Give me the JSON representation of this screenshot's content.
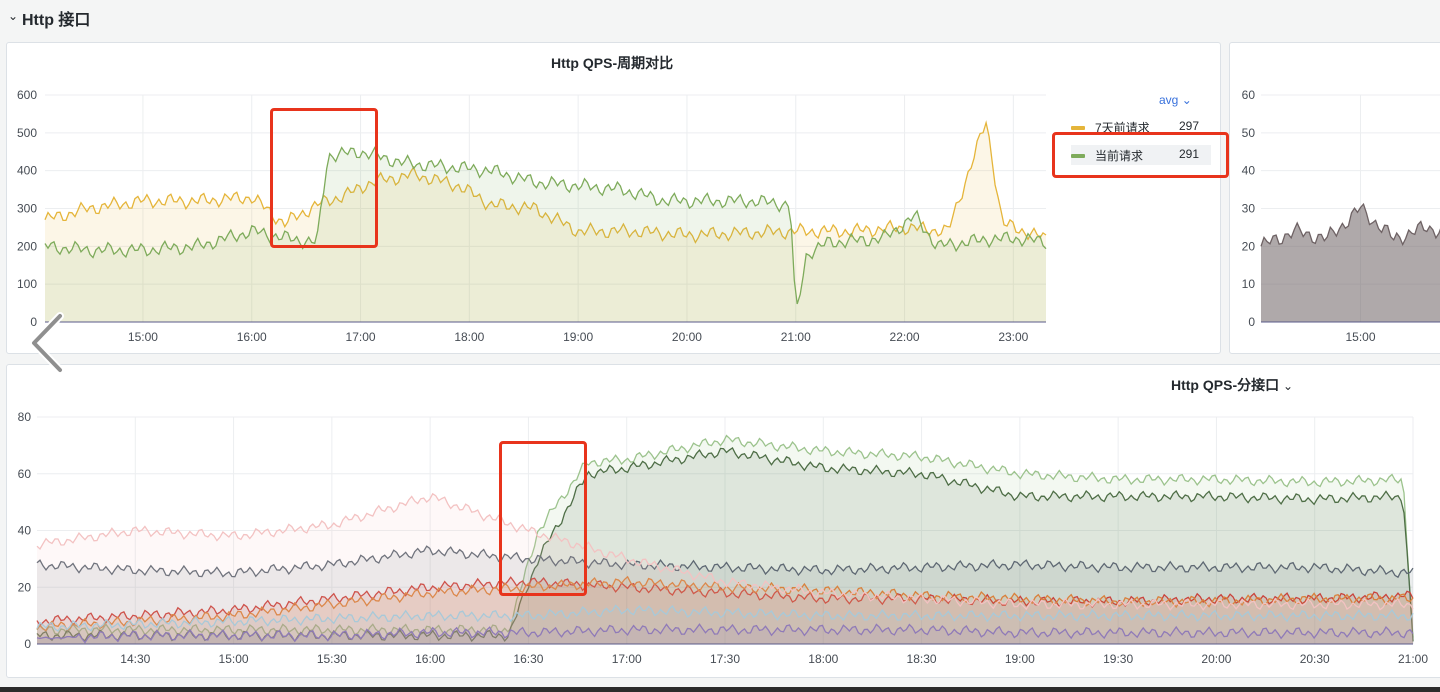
{
  "row": {
    "title": "Http 接口",
    "chevron": "chevron-down-icon"
  },
  "colors": {
    "yellow": "#e5b53a",
    "green": "#7eab5b",
    "highlight": "#e8341c",
    "link": "#3871dc"
  },
  "panels": [
    {
      "title": "Http QPS-周期对比",
      "legend": {
        "mode": "avg",
        "items": [
          {
            "name": "7天前请求",
            "value": "297",
            "color": "#e5b53a"
          },
          {
            "name": "当前请求",
            "value": "291",
            "color": "#7eab5b"
          }
        ]
      }
    },
    {
      "title": ""
    },
    {
      "title": "Http QPS-分接口"
    }
  ],
  "chart_data": [
    {
      "type": "area",
      "title": "Http QPS-周期对比",
      "ylim": [
        0,
        600
      ],
      "y_ticks": [
        "0",
        "100",
        "200",
        "300",
        "400",
        "500",
        "600"
      ],
      "x_ticks": [
        "15:00",
        "16:00",
        "17:00",
        "18:00",
        "19:00",
        "20:00",
        "21:00",
        "22:00",
        "23:00"
      ],
      "x_range_hours": [
        14.1,
        23.3
      ],
      "series": [
        {
          "name": "7天前请求",
          "color": "#e5b53a",
          "x": [
            14.1,
            14.5,
            15.0,
            15.5,
            16.0,
            16.3,
            16.6,
            16.9,
            17.1,
            17.5,
            17.9,
            18.2,
            18.6,
            19.0,
            19.5,
            20.0,
            20.5,
            21.0,
            21.5,
            22.0,
            22.4,
            22.75,
            22.9,
            23.3
          ],
          "values": [
            270,
            300,
            320,
            320,
            330,
            260,
            310,
            340,
            370,
            390,
            360,
            310,
            300,
            240,
            240,
            230,
            235,
            240,
            240,
            250,
            240,
            530,
            260,
            220
          ]
        },
        {
          "name": "当前请求",
          "color": "#7eab5b",
          "x": [
            14.1,
            14.5,
            15.0,
            15.5,
            16.0,
            16.35,
            16.6,
            16.7,
            17.0,
            17.4,
            17.8,
            18.2,
            18.6,
            19.0,
            19.4,
            19.8,
            20.2,
            20.6,
            20.95,
            21.0,
            21.1,
            21.3,
            21.8,
            22.1,
            22.3,
            22.8,
            23.1,
            23.3
          ],
          "values": [
            200,
            190,
            190,
            200,
            240,
            220,
            210,
            440,
            450,
            420,
            410,
            400,
            370,
            360,
            350,
            320,
            320,
            320,
            310,
            10,
            180,
            210,
            220,
            280,
            200,
            220,
            220,
            210
          ]
        }
      ]
    },
    {
      "type": "area",
      "ylim": [
        0,
        60
      ],
      "y_ticks": [
        "0",
        "10",
        "20",
        "30",
        "40",
        "50",
        "60"
      ],
      "x_ticks": [
        "15:00"
      ],
      "x_range_hours": [
        14.1,
        15.9
      ],
      "series": [
        {
          "color": "#6e6264",
          "x": [
            14.1,
            14.4,
            14.7,
            15.0,
            15.3,
            15.6,
            15.9
          ],
          "values": [
            20,
            24,
            22,
            30,
            22,
            25,
            23
          ]
        }
      ]
    },
    {
      "type": "area",
      "title": "Http QPS-分接口",
      "ylim": [
        0,
        80
      ],
      "y_ticks": [
        "0",
        "20",
        "40",
        "60",
        "80"
      ],
      "x_ticks": [
        "14:30",
        "15:00",
        "15:30",
        "16:00",
        "16:30",
        "17:00",
        "17:30",
        "18:00",
        "18:30",
        "19:00",
        "19:30",
        "20:00",
        "20:30",
        "21:00"
      ],
      "x_range_hours": [
        14.0,
        21.0
      ],
      "series": [
        {
          "color": "#9cc38d",
          "x": [
            14.0,
            16.4,
            16.55,
            16.8,
            17.0,
            17.5,
            18.0,
            18.5,
            19.0,
            19.5,
            20.0,
            20.5,
            20.95,
            21.0
          ],
          "values": [
            5,
            5,
            40,
            64,
            65,
            72,
            68,
            66,
            60,
            58,
            58,
            57,
            58,
            2
          ]
        },
        {
          "color": "#4e6e46",
          "x": [
            14.0,
            16.4,
            16.55,
            16.8,
            17.0,
            17.5,
            18.0,
            18.5,
            19.0,
            19.5,
            20.0,
            20.5,
            20.95,
            21.0
          ],
          "values": [
            3,
            3,
            30,
            60,
            62,
            68,
            62,
            60,
            52,
            52,
            52,
            51,
            52,
            1
          ]
        },
        {
          "color": "#5e6873",
          "x": [
            14.0,
            14.5,
            15.0,
            15.5,
            16.0,
            16.5,
            17.0,
            17.5,
            18.0,
            18.5,
            19.0,
            19.5,
            20.0,
            20.5,
            21.0
          ],
          "values": [
            28,
            26,
            25,
            28,
            33,
            30,
            28,
            27,
            26,
            27,
            28,
            27,
            27,
            27,
            25
          ]
        },
        {
          "color": "#c9433b",
          "x": [
            14.0,
            14.5,
            15.0,
            15.5,
            16.0,
            16.5,
            17.0,
            17.5,
            18.0,
            18.5,
            19.0,
            19.5,
            20.0,
            20.5,
            21.0
          ],
          "values": [
            8,
            10,
            12,
            16,
            20,
            22,
            20,
            18,
            16,
            16,
            15,
            15,
            16,
            16,
            17
          ]
        },
        {
          "color": "#d9803b",
          "x": [
            14.0,
            14.5,
            15.0,
            15.5,
            16.0,
            16.5,
            17.0,
            17.5,
            18.0,
            18.5,
            19.0,
            19.5,
            20.0,
            20.5,
            21.0
          ],
          "values": [
            6,
            8,
            10,
            14,
            18,
            20,
            22,
            20,
            19,
            17,
            16,
            15,
            15,
            16,
            16
          ]
        },
        {
          "color": "#f3c2c2",
          "x": [
            14.0,
            14.5,
            15.0,
            15.5,
            16.0,
            16.5,
            17.0,
            17.5,
            18.0,
            18.5,
            19.0,
            19.5,
            20.0,
            20.5,
            21.0
          ],
          "values": [
            35,
            40,
            38,
            42,
            52,
            40,
            30,
            22,
            18,
            16,
            14,
            14,
            14,
            14,
            14
          ]
        },
        {
          "color": "#a7c9d9",
          "x": [
            14.0,
            14.5,
            15.0,
            15.5,
            16.0,
            16.5,
            17.0,
            17.5,
            18.0,
            18.5,
            19.0,
            19.5,
            20.0,
            20.5,
            21.0
          ],
          "values": [
            6,
            7,
            8,
            9,
            10,
            10,
            12,
            11,
            10,
            10,
            10,
            10,
            10,
            10,
            10
          ]
        },
        {
          "color": "#8f7ab8",
          "x": [
            14.0,
            14.5,
            15.0,
            15.5,
            16.0,
            16.5,
            17.0,
            17.5,
            18.0,
            18.5,
            19.0,
            19.5,
            20.0,
            20.5,
            21.0
          ],
          "values": [
            2,
            3,
            3,
            3,
            4,
            4,
            5,
            5,
            5,
            5,
            4,
            4,
            4,
            4,
            4
          ]
        }
      ]
    }
  ]
}
